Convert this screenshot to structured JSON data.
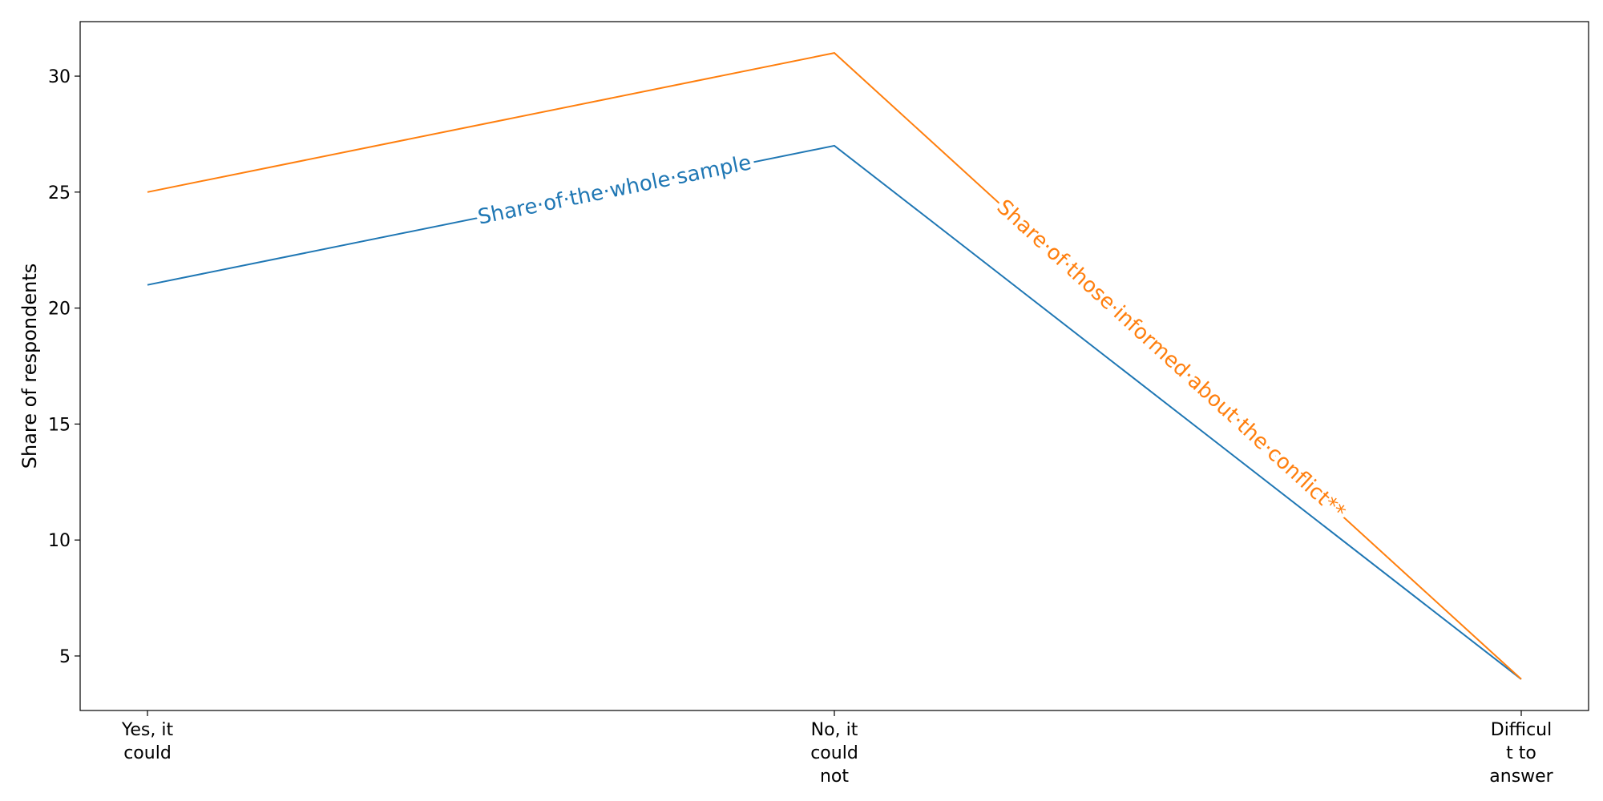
{
  "chart_data": {
    "type": "line",
    "title": "",
    "xlabel": "",
    "ylabel": "Share of respondents",
    "categories": [
      [
        "Yes, it",
        "could"
      ],
      [
        "No, it",
        "could",
        "not"
      ],
      [
        "Difficul",
        "t to",
        "answer"
      ]
    ],
    "series": [
      {
        "name": "Share·of·the·whole·sample",
        "values": [
          21,
          27,
          4
        ],
        "color": "#1f77b4"
      },
      {
        "name": "Share·of·those·informed·about·the·conflict**",
        "values": [
          25,
          31,
          4
        ],
        "color": "#ff7f0e"
      }
    ],
    "ylim": [
      2.65,
      32.35
    ],
    "yticks": [
      5,
      10,
      15,
      20,
      25,
      30
    ],
    "grid": false,
    "legend": "inline labels on lines"
  }
}
